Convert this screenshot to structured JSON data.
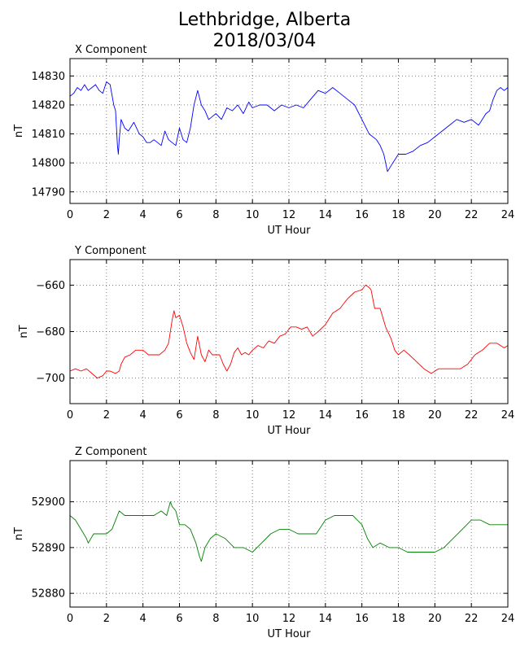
{
  "title": {
    "line1": "Lethbridge, Alberta",
    "line2": "2018/03/04"
  },
  "chart_data": [
    {
      "type": "line",
      "title": "X Component",
      "xlabel": "UT Hour",
      "ylabel": "nT",
      "xlim": [
        0,
        24
      ],
      "ylim": [
        14786,
        14836
      ],
      "xticks": [
        0,
        2,
        4,
        6,
        8,
        10,
        12,
        14,
        16,
        18,
        20,
        22,
        24
      ],
      "yticks": [
        14790,
        14800,
        14810,
        14820,
        14830
      ],
      "grid": true,
      "color": "#0000ff",
      "x": [
        0,
        0.2,
        0.4,
        0.6,
        0.8,
        1.0,
        1.2,
        1.4,
        1.6,
        1.8,
        2.0,
        2.2,
        2.4,
        2.5,
        2.6,
        2.65,
        2.7,
        2.8,
        3.0,
        3.2,
        3.5,
        3.8,
        4.0,
        4.2,
        4.4,
        4.6,
        4.8,
        5.0,
        5.2,
        5.4,
        5.6,
        5.8,
        6.0,
        6.2,
        6.4,
        6.6,
        6.8,
        7.0,
        7.2,
        7.4,
        7.6,
        7.8,
        8.0,
        8.3,
        8.6,
        8.9,
        9.2,
        9.5,
        9.8,
        10.0,
        10.4,
        10.8,
        11.2,
        11.6,
        12.0,
        12.4,
        12.8,
        13.2,
        13.6,
        14.0,
        14.4,
        14.8,
        15.2,
        15.6,
        16.0,
        16.4,
        16.8,
        17.0,
        17.2,
        17.4,
        17.6,
        17.8,
        18.0,
        18.4,
        18.8,
        19.2,
        19.6,
        20.0,
        20.4,
        20.8,
        21.2,
        21.6,
        22.0,
        22.4,
        22.8,
        23.0,
        23.2,
        23.4,
        23.6,
        23.8,
        24.0
      ],
      "values": [
        14823,
        14824,
        14826,
        14825,
        14827,
        14825,
        14826,
        14827,
        14825,
        14824,
        14828,
        14827,
        14820,
        14818,
        14806,
        14803,
        14808,
        14815,
        14812,
        14811,
        14814,
        14810,
        14809,
        14807,
        14807,
        14808,
        14807,
        14806,
        14811,
        14808,
        14807,
        14806,
        14812,
        14808,
        14807,
        14812,
        14820,
        14825,
        14820,
        14818,
        14815,
        14816,
        14817,
        14815,
        14819,
        14818,
        14820,
        14817,
        14821,
        14819,
        14820,
        14820,
        14818,
        14820,
        14819,
        14820,
        14819,
        14822,
        14825,
        14824,
        14826,
        14824,
        14822,
        14820,
        14815,
        14810,
        14808,
        14806,
        14803,
        14797,
        14799,
        14801,
        14803,
        14803,
        14804,
        14806,
        14807,
        14809,
        14811,
        14813,
        14815,
        14814,
        14815,
        14813,
        14817,
        14818,
        14822,
        14825,
        14826,
        14825,
        14826
      ]
    },
    {
      "type": "line",
      "title": "Y Component",
      "xlabel": "UT Hour",
      "ylabel": "nT",
      "xlim": [
        0,
        24
      ],
      "ylim": [
        -711,
        -649
      ],
      "xticks": [
        0,
        2,
        4,
        6,
        8,
        10,
        12,
        14,
        16,
        18,
        20,
        22,
        24
      ],
      "yticks": [
        -660,
        -680,
        -700
      ],
      "grid": true,
      "color": "#ff0000",
      "x": [
        0,
        0.3,
        0.6,
        0.9,
        1.2,
        1.5,
        1.8,
        2.0,
        2.2,
        2.5,
        2.7,
        2.8,
        3.0,
        3.3,
        3.6,
        4.0,
        4.3,
        4.6,
        4.9,
        5.2,
        5.4,
        5.6,
        5.7,
        5.8,
        6.0,
        6.2,
        6.4,
        6.6,
        6.8,
        7.0,
        7.2,
        7.4,
        7.6,
        7.8,
        8.0,
        8.2,
        8.4,
        8.6,
        8.8,
        9.0,
        9.2,
        9.4,
        9.6,
        9.8,
        10.0,
        10.3,
        10.6,
        10.9,
        11.2,
        11.5,
        11.8,
        12.1,
        12.4,
        12.7,
        13.0,
        13.3,
        13.6,
        14.0,
        14.4,
        14.8,
        15.2,
        15.6,
        16.0,
        16.2,
        16.4,
        16.5,
        16.7,
        17.0,
        17.3,
        17.6,
        17.8,
        18.0,
        18.3,
        18.6,
        19.0,
        19.4,
        19.8,
        20.2,
        20.6,
        21.0,
        21.4,
        21.8,
        22.2,
        22.6,
        23.0,
        23.4,
        23.8,
        24.0
      ],
      "values": [
        -697,
        -696,
        -697,
        -696,
        -698,
        -700,
        -699,
        -697,
        -697,
        -698,
        -697,
        -694,
        -691,
        -690,
        -688,
        -688,
        -690,
        -690,
        -690,
        -688,
        -685,
        -675,
        -671,
        -674,
        -673,
        -678,
        -685,
        -689,
        -692,
        -682,
        -690,
        -693,
        -688,
        -690,
        -690,
        -690,
        -694,
        -697,
        -694,
        -689,
        -687,
        -690,
        -689,
        -690,
        -688,
        -686,
        -687,
        -684,
        -685,
        -682,
        -681,
        -678,
        -678,
        -679,
        -678,
        -682,
        -680,
        -677,
        -672,
        -670,
        -666,
        -663,
        -662,
        -660,
        -661,
        -662,
        -670,
        -670,
        -678,
        -683,
        -688,
        -690,
        -688,
        -690,
        -693,
        -696,
        -698,
        -696,
        -696,
        -696,
        -696,
        -694,
        -690,
        -688,
        -685,
        -685,
        -687,
        -686
      ]
    },
    {
      "type": "line",
      "title": "Z Component",
      "xlabel": "UT Hour",
      "ylabel": "nT",
      "xlim": [
        0,
        24
      ],
      "ylim": [
        52877,
        52909
      ],
      "xticks": [
        0,
        2,
        4,
        6,
        8,
        10,
        12,
        14,
        16,
        18,
        20,
        22,
        24
      ],
      "yticks": [
        52880,
        52890,
        52900
      ],
      "grid": true,
      "color": "#008000",
      "x": [
        0,
        0.3,
        0.6,
        0.9,
        1.0,
        1.3,
        1.6,
        2.0,
        2.3,
        2.6,
        2.7,
        3.0,
        3.4,
        3.8,
        4.2,
        4.6,
        5.0,
        5.3,
        5.5,
        5.6,
        5.8,
        6.0,
        6.3,
        6.6,
        6.9,
        7.1,
        7.2,
        7.4,
        7.7,
        8.0,
        8.5,
        9.0,
        9.5,
        10.0,
        10.5,
        11.0,
        11.5,
        12.0,
        12.5,
        13.0,
        13.5,
        14.0,
        14.5,
        15.0,
        15.5,
        16.0,
        16.3,
        16.6,
        17.0,
        17.5,
        18.0,
        18.5,
        19.0,
        19.5,
        20.0,
        20.5,
        21.0,
        21.5,
        22.0,
        22.5,
        23.0,
        23.5,
        24.0
      ],
      "values": [
        52897,
        52896,
        52894,
        52892,
        52891,
        52893,
        52893,
        52893,
        52894,
        52897,
        52898,
        52897,
        52897,
        52897,
        52897,
        52897,
        52898,
        52897,
        52900,
        52899,
        52898,
        52895,
        52895,
        52894,
        52891,
        52888,
        52887,
        52890,
        52892,
        52893,
        52892,
        52890,
        52890,
        52889,
        52891,
        52893,
        52894,
        52894,
        52893,
        52893,
        52893,
        52896,
        52897,
        52897,
        52897,
        52895,
        52892,
        52890,
        52891,
        52890,
        52890,
        52889,
        52889,
        52889,
        52889,
        52890,
        52892,
        52894,
        52896,
        52896,
        52895,
        52895,
        52895
      ]
    }
  ]
}
